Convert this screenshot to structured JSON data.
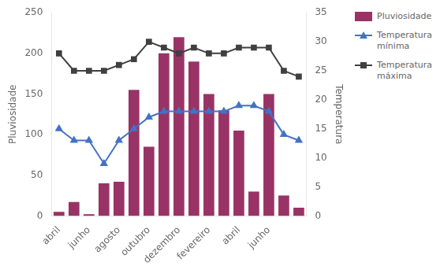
{
  "chart_data": {
    "type": "bar",
    "categories": [
      "abril",
      null,
      "junho",
      null,
      "agosto",
      null,
      "outubro",
      null,
      "dezembro",
      null,
      "fevereiro",
      null,
      "abril",
      null,
      "junho",
      null,
      null
    ],
    "series": [
      {
        "name": "Pluviosidade",
        "type": "bar",
        "color": "#993366",
        "values": [
          5,
          17,
          2,
          40,
          42,
          155,
          85,
          200,
          220,
          190,
          150,
          130,
          105,
          30,
          150,
          25,
          10
        ]
      },
      {
        "name": "Temperatura\nmínima",
        "type": "line",
        "color": "#4472C4",
        "marker": "triangle",
        "axis": "y2",
        "values": [
          15,
          13,
          13,
          9,
          13,
          15,
          17,
          18,
          18,
          18,
          18,
          18,
          19,
          19,
          18,
          14,
          13
        ]
      },
      {
        "name": "Temperatura\nmáxima",
        "type": "line",
        "color": "#404040",
        "marker": "square",
        "axis": "y2",
        "values": [
          28,
          25,
          25,
          25,
          26,
          27,
          30,
          29,
          28,
          29,
          28,
          28,
          29,
          29,
          29,
          25,
          24
        ]
      }
    ],
    "ylabel": "Pluviosidade",
    "y2label": "Temperatura",
    "ylim": [
      0,
      250
    ],
    "yticks": [
      0,
      50,
      100,
      150,
      200,
      250
    ],
    "y2lim": [
      0,
      35
    ],
    "y2ticks": [
      0,
      5,
      10,
      15,
      20,
      25,
      30,
      35
    ],
    "grid": false,
    "legend": "right"
  }
}
